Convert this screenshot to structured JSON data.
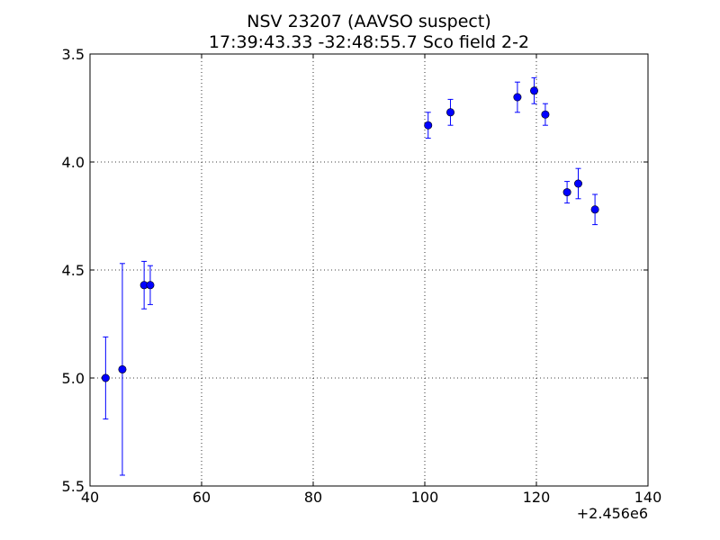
{
  "chart_data": {
    "type": "scatter",
    "title_lines": [
      "NSV 23207  (AAVSO suspect)",
      "17:39:43.33 -32:48:55.7 Sco field 2-2"
    ],
    "xlabel": "",
    "ylabel": "",
    "x_offset_label": "+2.456e6",
    "xlim": [
      40,
      140
    ],
    "ylim": [
      5.5,
      3.5
    ],
    "y_inverted": true,
    "grid": true,
    "x_ticks": [
      40,
      60,
      80,
      100,
      120,
      140
    ],
    "x_tick_labels": [
      "40",
      "60",
      "80",
      "100",
      "120",
      "140"
    ],
    "y_ticks": [
      3.5,
      4.0,
      4.5,
      5.0,
      5.5
    ],
    "y_tick_labels": [
      "3.5",
      "4.0",
      "4.5",
      "5.0",
      "5.5"
    ],
    "marker_color": "#0000ff",
    "points": [
      {
        "x": 42.8,
        "y": 5.0,
        "err": 0.19
      },
      {
        "x": 45.8,
        "y": 4.96,
        "err": 0.49
      },
      {
        "x": 49.7,
        "y": 4.57,
        "err": 0.11
      },
      {
        "x": 50.8,
        "y": 4.57,
        "err": 0.09
      },
      {
        "x": 100.6,
        "y": 3.83,
        "err": 0.06
      },
      {
        "x": 104.6,
        "y": 3.77,
        "err": 0.06
      },
      {
        "x": 116.6,
        "y": 3.7,
        "err": 0.07
      },
      {
        "x": 119.6,
        "y": 3.67,
        "err": 0.06
      },
      {
        "x": 121.6,
        "y": 3.78,
        "err": 0.05
      },
      {
        "x": 125.5,
        "y": 4.14,
        "err": 0.05
      },
      {
        "x": 127.5,
        "y": 4.1,
        "err": 0.07
      },
      {
        "x": 130.5,
        "y": 4.22,
        "err": 0.07
      }
    ]
  }
}
